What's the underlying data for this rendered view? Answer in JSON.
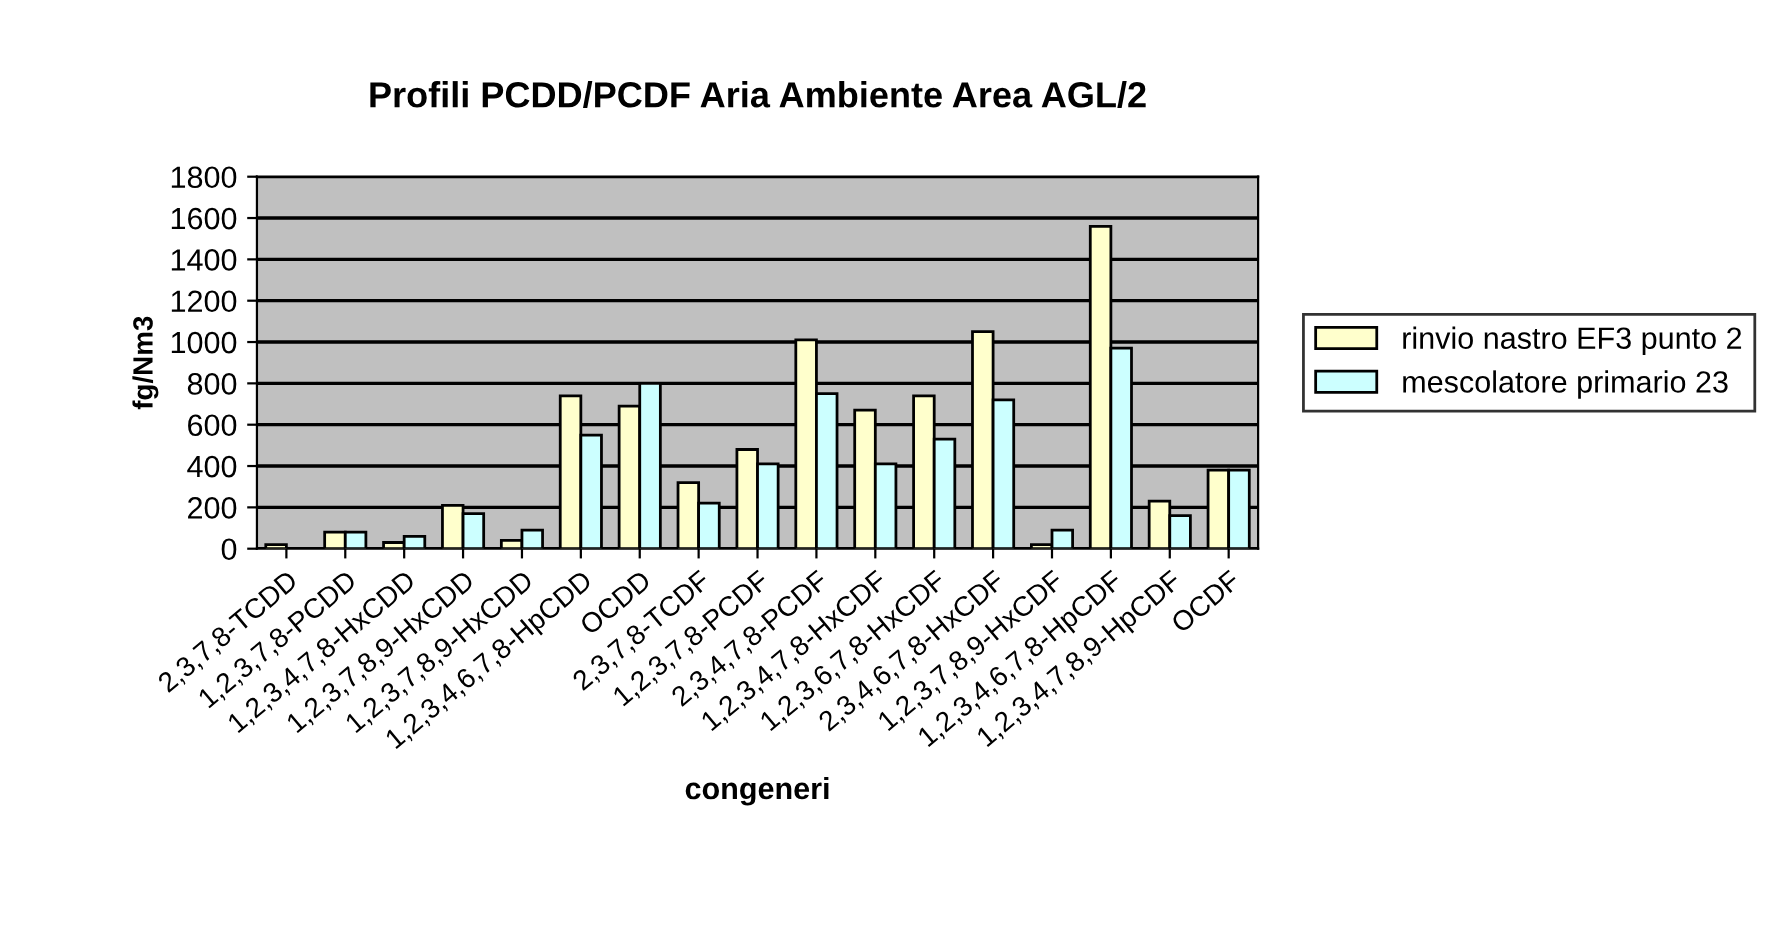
{
  "chart_data": {
    "type": "bar",
    "title": "Profili PCDD/PCDF Aria Ambiente Area AGL/2",
    "xlabel": "congeneri",
    "ylabel": "fg/Nm3",
    "categories": [
      "2,3,7,8-TCDD",
      "1,2,3,7,8-PCDD",
      "1,2,3,4,7,8-HxCDD",
      "1,2,3,7,8,9-HxCDD",
      "1,2,3,7,8,9-HxCDD",
      "1,2,3,4,6,7,8-HpCDD",
      "OCDD",
      "2,3,7,8-TCDF",
      "1,2,3,7,8-PCDF",
      "2,3,4,7,8-PCDF",
      "1,2,3,4,7,8-HxCDF",
      "1,2,3,6,7,8-HxCDF",
      "2,3,4,6,7,8-HxCDF",
      "1,2,3,7,8,9-HxCDF",
      "1,2,3,4,6,7,8-HpCDF",
      "1,2,3,4,7,8,9-HpCDF",
      "OCDF"
    ],
    "series": [
      {
        "name": "rinvio nastro EF3 punto 2",
        "color": "#ffffcc",
        "values": [
          20,
          80,
          30,
          210,
          40,
          740,
          690,
          320,
          480,
          1010,
          670,
          740,
          1050,
          20,
          1560,
          230,
          380
        ]
      },
      {
        "name": "mescolatore primario 23",
        "color": "#ccffff",
        "values": [
          null,
          80,
          60,
          170,
          90,
          550,
          800,
          220,
          410,
          750,
          410,
          530,
          720,
          90,
          970,
          160,
          380
        ]
      }
    ],
    "ylim": [
      0,
      1800
    ],
    "yticks": [
      0,
      200,
      400,
      600,
      800,
      1000,
      1200,
      1400,
      1600,
      1800
    ],
    "grid": "y",
    "legend": "right"
  }
}
